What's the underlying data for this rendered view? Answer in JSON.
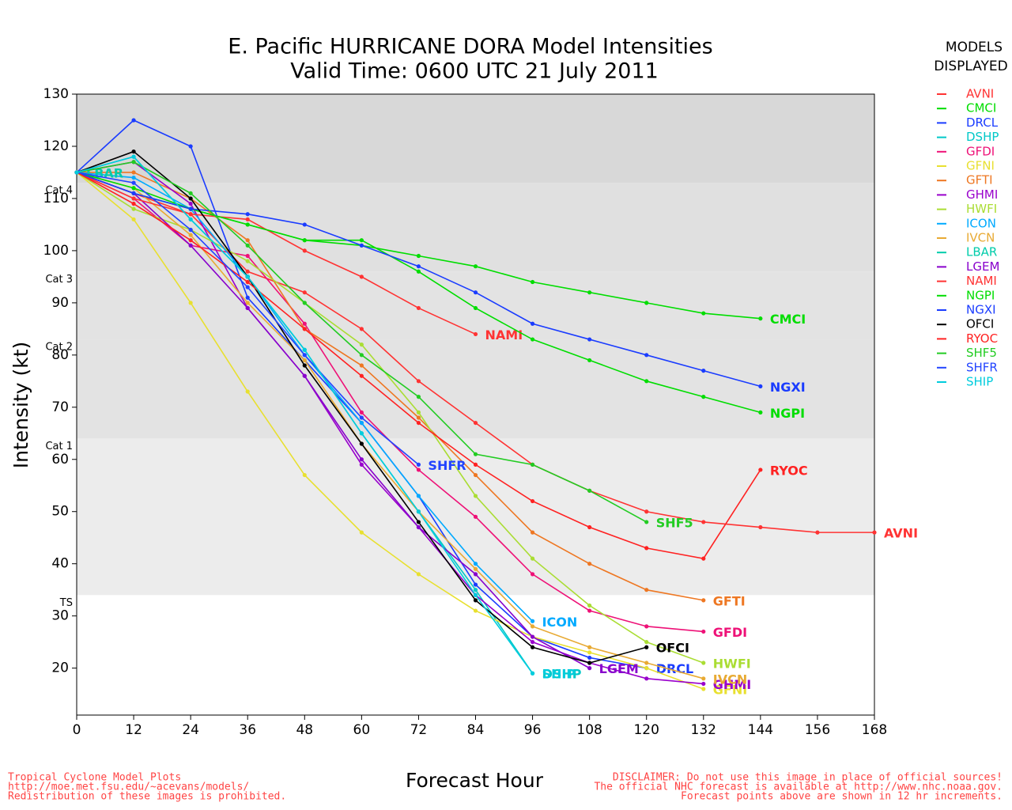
{
  "chart_data": {
    "type": "line",
    "title": [
      "E. Pacific HURRICANE DORA Model Intensities",
      "Valid Time: 0600 UTC 21 July 2011"
    ],
    "xlabel": "Forecast Hour",
    "ylabel": "Intensity (kt)",
    "x": [
      0,
      12,
      24,
      36,
      48,
      60,
      72,
      84,
      96,
      108,
      120,
      132,
      144,
      156,
      168
    ],
    "xlim": [
      0,
      168
    ],
    "xticks": [
      0,
      12,
      24,
      36,
      48,
      60,
      72,
      84,
      96,
      108,
      120,
      132,
      144,
      156,
      168
    ],
    "ylim": [
      11,
      130
    ],
    "yticks": [
      20,
      30,
      40,
      50,
      60,
      70,
      80,
      90,
      100,
      110,
      120,
      130
    ],
    "intensity_bands": [
      {
        "value": 34,
        "label": "TS",
        "color": "#ececec"
      },
      {
        "value": 64,
        "label": "Cat 1",
        "color": "#e3e3e3"
      },
      {
        "value": 83,
        "label": "Cat 2",
        "color": "#e3e3e3"
      },
      {
        "value": 96,
        "label": "Cat 3",
        "color": "#e0e0e0"
      },
      {
        "value": 113,
        "label": "Cat 4",
        "color": "#d8d8d8"
      }
    ],
    "legend_title": [
      "MODELS",
      "DISPLAYED"
    ],
    "series": [
      {
        "name": "AVNI",
        "color": "#ff3333",
        "values": [
          115,
          111,
          107,
          96,
          92,
          85,
          75,
          67,
          59,
          54,
          50,
          48,
          47,
          46,
          46
        ]
      },
      {
        "name": "CMCI",
        "color": "#00dd00",
        "values": [
          115,
          111,
          108,
          105,
          102,
          101,
          99,
          97,
          94,
          92,
          90,
          88,
          87,
          null,
          null
        ]
      },
      {
        "name": "DRCL",
        "color": "#1a3cff",
        "values": [
          115,
          125,
          120,
          91,
          79,
          67,
          53,
          36,
          26,
          22,
          20,
          null,
          null,
          null,
          null
        ]
      },
      {
        "name": "DSHP",
        "color": "#00c8c8",
        "values": [
          115,
          118,
          106,
          95,
          81,
          65,
          50,
          35,
          19,
          null,
          null,
          null,
          null,
          null,
          null
        ]
      },
      {
        "name": "GFDI",
        "color": "#ee1177",
        "values": [
          115,
          110,
          101,
          99,
          86,
          69,
          58,
          49,
          38,
          31,
          28,
          27,
          null,
          null,
          null
        ]
      },
      {
        "name": "GFNI",
        "color": "#e8e030",
        "values": [
          115,
          106,
          90,
          73,
          57,
          46,
          38,
          31,
          26,
          23,
          20,
          16,
          null,
          null,
          null
        ]
      },
      {
        "name": "GFTI",
        "color": "#ee7722",
        "values": [
          115,
          115,
          110,
          102,
          85,
          78,
          68,
          57,
          46,
          40,
          35,
          33,
          null,
          null,
          null
        ]
      },
      {
        "name": "GHMI",
        "color": "#9900cc",
        "values": [
          115,
          117,
          109,
          89,
          76,
          59,
          47,
          34,
          25,
          21,
          18,
          17,
          null,
          null,
          null
        ]
      },
      {
        "name": "HWFI",
        "color": "#aadd33",
        "values": [
          115,
          108,
          104,
          98,
          90,
          82,
          69,
          53,
          41,
          32,
          25,
          21,
          null,
          null,
          null
        ]
      },
      {
        "name": "ICON",
        "color": "#00aaff",
        "values": [
          115,
          114,
          108,
          95,
          80,
          67,
          53,
          40,
          29,
          null,
          null,
          null,
          null,
          null,
          null
        ]
      },
      {
        "name": "IVCN",
        "color": "#e8aa33",
        "values": [
          115,
          112,
          103,
          90,
          79,
          63,
          50,
          39,
          28,
          24,
          21,
          18,
          null,
          null,
          null
        ]
      },
      {
        "name": "LBAR",
        "color": "#00ccaa",
        "values": [
          115,
          null,
          null,
          null,
          null,
          null,
          null,
          null,
          null,
          null,
          null,
          null,
          null,
          null,
          null
        ]
      },
      {
        "name": "LGEM",
        "color": "#8800cc",
        "values": [
          115,
          111,
          101,
          89,
          76,
          60,
          47,
          38,
          26,
          20,
          null,
          null,
          null,
          null,
          null
        ]
      },
      {
        "name": "NAMI",
        "color": "#ff3333",
        "values": [
          115,
          110,
          107,
          106,
          100,
          95,
          89,
          84,
          null,
          null,
          null,
          null,
          null,
          null,
          null
        ]
      },
      {
        "name": "NGPI",
        "color": "#00dd00",
        "values": [
          115,
          112,
          108,
          105,
          102,
          102,
          96,
          89,
          83,
          79,
          75,
          72,
          69,
          null,
          null
        ]
      },
      {
        "name": "NGXI",
        "color": "#1a3cff",
        "values": [
          115,
          111,
          108,
          107,
          105,
          101,
          97,
          92,
          86,
          83,
          80,
          77,
          74,
          null,
          null
        ]
      },
      {
        "name": "OFCI",
        "color": "#000000",
        "values": [
          115,
          119,
          110,
          95,
          78,
          63,
          48,
          33,
          24,
          21,
          24,
          null,
          null,
          null,
          null
        ]
      },
      {
        "name": "RYOC",
        "color": "#ff2222",
        "values": [
          115,
          109,
          102,
          94,
          85,
          76,
          67,
          59,
          52,
          47,
          43,
          41,
          58,
          null,
          null
        ]
      },
      {
        "name": "SHF5",
        "color": "#22cc22",
        "values": [
          115,
          117,
          111,
          101,
          90,
          80,
          72,
          61,
          59,
          54,
          48,
          null,
          null,
          null,
          null
        ]
      },
      {
        "name": "SHFR",
        "color": "#2244ff",
        "values": [
          115,
          113,
          104,
          93,
          80,
          68,
          59,
          null,
          null,
          null,
          null,
          null,
          null,
          null,
          null
        ]
      },
      {
        "name": "SHIP",
        "color": "#00ccdd",
        "values": [
          115,
          118,
          106,
          95,
          81,
          65,
          50,
          34,
          19,
          null,
          null,
          null,
          null,
          null,
          null
        ]
      }
    ],
    "footer_left": [
      "Tropical Cyclone Model Plots",
      "http://moe.met.fsu.edu/~acevans/models/",
      "Redistribution of these images is prohibited."
    ],
    "footer_right": [
      "DISCLAIMER: Do not use this image in place of official sources!",
      "The official NHC forecast is available at http://www.nhc.noaa.gov.",
      "Forecast points above are shown in 12 hr increments."
    ]
  }
}
